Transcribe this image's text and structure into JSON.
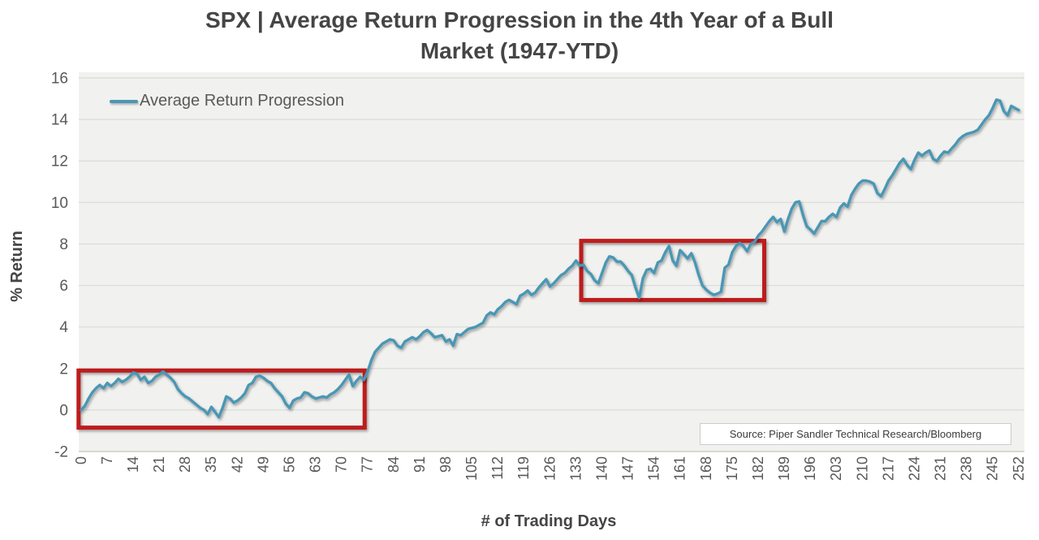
{
  "header": {
    "title_lines": [
      "SPX | Average Return Progression in the 4th Year of a Bull",
      "Market (1947-YTD)"
    ]
  },
  "legend": {
    "label": "Average Return Progression"
  },
  "axes": {
    "x_title": "# of Trading Days",
    "y_title": "% Return"
  },
  "source": {
    "label": "Source: Piper Sandler Technical Research/Bloomberg"
  },
  "colors": {
    "line": "#4a97b5",
    "annotation_box": "#be1c1c",
    "plot_bg": "#f1f1ef",
    "gridline": "#dadad8",
    "axis_line": "#c6c6c4",
    "tick_text": "#595959",
    "title_text": "#454545"
  },
  "chart_data": {
    "type": "line",
    "title": "SPX | Average Return Progression in the 4th Year of a Bull Market (1947-YTD)",
    "xlabel": "# of Trading Days",
    "ylabel": "% Return",
    "xlim": [
      0,
      252
    ],
    "ylim": [
      -2,
      16
    ],
    "x_ticks": [
      0,
      7,
      14,
      21,
      28,
      35,
      42,
      49,
      56,
      63,
      70,
      77,
      84,
      91,
      98,
      105,
      112,
      119,
      126,
      133,
      140,
      147,
      154,
      161,
      168,
      175,
      182,
      189,
      196,
      203,
      210,
      217,
      224,
      231,
      238,
      245,
      252
    ],
    "y_ticks": [
      16,
      14,
      12,
      10,
      8,
      6,
      4,
      2,
      0,
      -2
    ],
    "grid": "horizontal",
    "legend_position": "top-left",
    "source_note": "Source: Piper Sandler Technical Research/Bloomberg",
    "series": [
      {
        "name": "Average Return Progression",
        "x_start": 0,
        "x_step": 1,
        "values": [
          0.0,
          0.2,
          0.55,
          0.85,
          1.05,
          1.2,
          1.05,
          1.3,
          1.15,
          1.3,
          1.5,
          1.35,
          1.45,
          1.6,
          1.8,
          1.75,
          1.45,
          1.6,
          1.3,
          1.4,
          1.6,
          1.7,
          1.85,
          1.7,
          1.55,
          1.35,
          1.0,
          0.8,
          0.65,
          0.55,
          0.4,
          0.25,
          0.1,
          0.0,
          -0.2,
          0.15,
          -0.1,
          -0.35,
          0.1,
          0.65,
          0.55,
          0.35,
          0.45,
          0.6,
          0.8,
          1.2,
          1.3,
          1.6,
          1.65,
          1.55,
          1.4,
          1.3,
          1.05,
          0.85,
          0.65,
          0.3,
          0.1,
          0.45,
          0.55,
          0.6,
          0.85,
          0.8,
          0.65,
          0.55,
          0.6,
          0.65,
          0.6,
          0.75,
          0.85,
          1.0,
          1.2,
          1.45,
          1.7,
          1.15,
          1.4,
          1.6,
          1.45,
          1.85,
          2.4,
          2.8,
          3.0,
          3.2,
          3.3,
          3.4,
          3.35,
          3.1,
          3.0,
          3.3,
          3.4,
          3.5,
          3.4,
          3.55,
          3.75,
          3.85,
          3.7,
          3.5,
          3.55,
          3.6,
          3.3,
          3.4,
          3.1,
          3.65,
          3.6,
          3.75,
          3.9,
          3.95,
          4.0,
          4.1,
          4.2,
          4.55,
          4.7,
          4.6,
          4.85,
          5.0,
          5.2,
          5.3,
          5.2,
          5.1,
          5.5,
          5.6,
          5.75,
          5.55,
          5.65,
          5.9,
          6.1,
          6.3,
          5.95,
          6.1,
          6.3,
          6.5,
          6.6,
          6.8,
          6.95,
          7.2,
          6.95,
          7.0,
          6.7,
          6.55,
          6.25,
          6.1,
          6.6,
          7.1,
          7.4,
          7.35,
          7.15,
          7.15,
          6.95,
          6.7,
          6.5,
          5.9,
          5.4,
          6.35,
          6.75,
          6.8,
          6.6,
          7.1,
          7.2,
          7.6,
          7.9,
          7.2,
          6.95,
          7.7,
          7.5,
          7.3,
          7.55,
          7.1,
          6.5,
          6.0,
          5.8,
          5.65,
          5.55,
          5.6,
          5.7,
          6.85,
          7.0,
          7.6,
          7.9,
          8.05,
          7.9,
          7.65,
          8.0,
          8.1,
          8.4,
          8.6,
          8.85,
          9.1,
          9.3,
          9.05,
          9.2,
          8.6,
          9.2,
          9.7,
          10.0,
          10.05,
          9.4,
          8.85,
          8.7,
          8.5,
          8.8,
          9.1,
          9.1,
          9.3,
          9.45,
          9.3,
          9.75,
          9.95,
          9.8,
          10.35,
          10.65,
          10.9,
          11.05,
          11.05,
          11.0,
          10.9,
          10.45,
          10.3,
          10.65,
          11.05,
          11.3,
          11.6,
          11.9,
          12.1,
          11.8,
          11.6,
          12.05,
          12.4,
          12.25,
          12.4,
          12.5,
          12.1,
          12.0,
          12.25,
          12.45,
          12.4,
          12.6,
          12.8,
          13.05,
          13.2,
          13.3,
          13.35,
          13.4,
          13.5,
          13.75,
          14.0,
          14.2,
          14.55,
          14.95,
          14.9,
          14.4,
          14.2,
          14.65,
          14.55,
          14.45
        ]
      }
    ],
    "annotations": [
      {
        "type": "rect",
        "x0": -0.7,
        "x1": 76.2,
        "y0": -0.85,
        "y1": 1.9
      },
      {
        "type": "rect",
        "x0": 134.4,
        "x1": 183.6,
        "y0": 5.3,
        "y1": 8.15
      }
    ]
  }
}
